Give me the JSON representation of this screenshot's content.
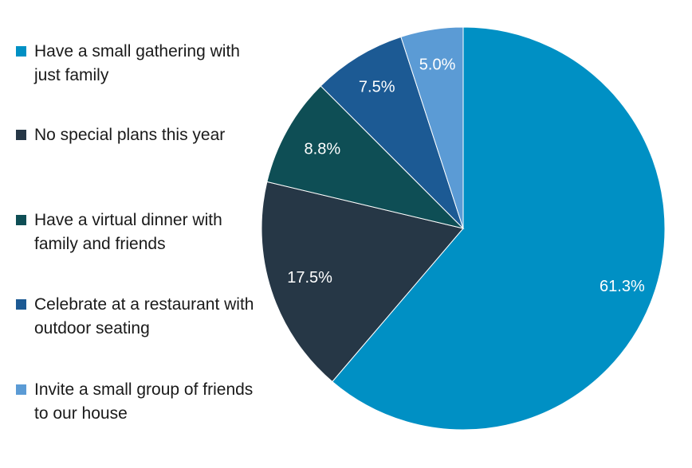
{
  "chart_data": {
    "type": "pie",
    "title": "",
    "categories": [
      "Have a small gathering with just family",
      "No special plans this year",
      "Have a virtual dinner with family and friends",
      "Celebrate at a restaurant with outdoor seating",
      "Invite a small group of friends to our house"
    ],
    "values": [
      61.3,
      17.5,
      8.8,
      7.5,
      5.0
    ],
    "value_labels": [
      "61.3%",
      "17.5%",
      "8.8%",
      "7.5%",
      "5.0%"
    ],
    "colors": [
      "#0090c4",
      "#263746",
      "#0e4e55",
      "#1c5a94",
      "#5b9bd5"
    ],
    "legend_placement": "left",
    "start_angle": "12 o'clock",
    "direction": "clockwise"
  }
}
